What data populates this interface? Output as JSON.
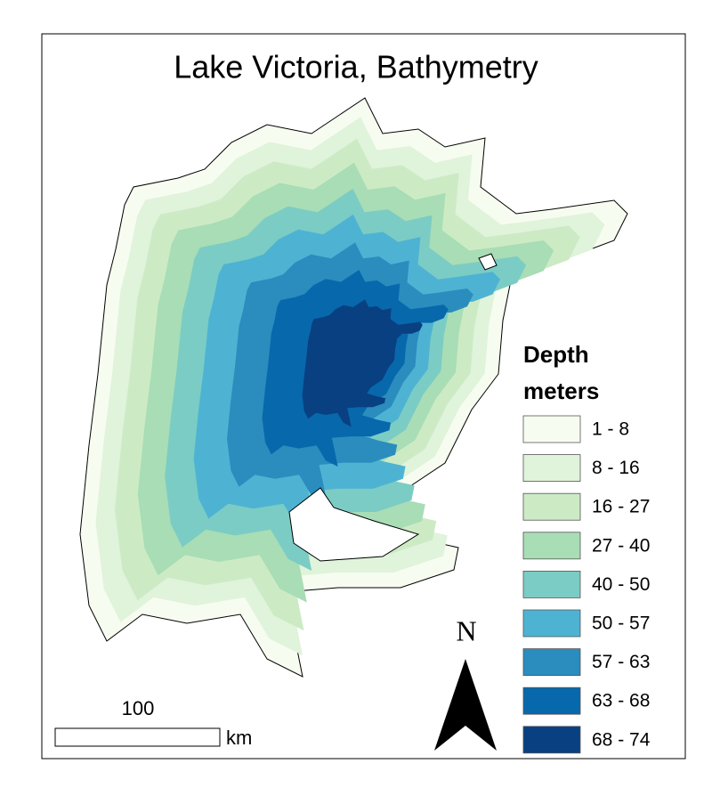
{
  "title": "Lake Victoria, Bathymetry",
  "legend": {
    "title": "Depth",
    "subtitle": "meters",
    "items": [
      {
        "label": "1 - 8",
        "color": "#f7fcf0"
      },
      {
        "label": "8 - 16",
        "color": "#e0f3db"
      },
      {
        "label": "16 - 27",
        "color": "#ccebc5"
      },
      {
        "label": "27 - 40",
        "color": "#a8ddb5"
      },
      {
        "label": "40 - 50",
        "color": "#7bccc4"
      },
      {
        "label": "50 - 57",
        "color": "#4eb3d3"
      },
      {
        "label": "57 - 63",
        "color": "#2b8cbe"
      },
      {
        "label": "63 - 68",
        "color": "#0868ac"
      },
      {
        "label": "68 - 74",
        "color": "#084081"
      }
    ]
  },
  "north_arrow": "N",
  "scale_bar": {
    "label": "100",
    "unit": "km"
  }
}
